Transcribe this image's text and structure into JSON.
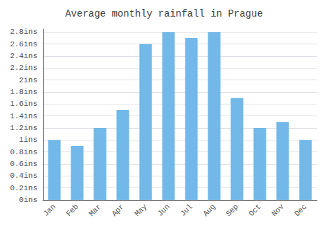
{
  "chart_data": {
    "type": "bar",
    "title": "Average monthly rainfall in Prague",
    "categories": [
      "Jan",
      "Feb",
      "Mar",
      "Apr",
      "May",
      "Jun",
      "Jul",
      "Aug",
      "Sep",
      "Oct",
      "Nov",
      "Dec"
    ],
    "values": [
      1.0,
      0.9,
      1.2,
      1.5,
      2.6,
      2.8,
      2.7,
      2.8,
      1.7,
      1.2,
      1.3,
      1.0
    ],
    "color": "#72b8e8",
    "ylim": [
      0,
      2.85
    ],
    "yticks": [
      {
        "value": 0,
        "label": "0ins"
      },
      {
        "value": 0.2,
        "label": "0.2ins"
      },
      {
        "value": 0.4,
        "label": "0.4ins"
      },
      {
        "value": 0.6,
        "label": "0.6ins"
      },
      {
        "value": 0.8,
        "label": "0.8ins"
      },
      {
        "value": 1.0,
        "label": "1ins"
      },
      {
        "value": 1.2,
        "label": "1.2ins"
      },
      {
        "value": 1.4,
        "label": "1.4ins"
      },
      {
        "value": 1.6,
        "label": "1.6ins"
      },
      {
        "value": 1.8,
        "label": "1.8ins"
      },
      {
        "value": 2.0,
        "label": "2ins"
      },
      {
        "value": 2.2,
        "label": "2.2ins"
      },
      {
        "value": 2.4,
        "label": "2.4ins"
      },
      {
        "value": 2.6,
        "label": "2.6ins"
      },
      {
        "value": 2.8,
        "label": "2.8ins"
      }
    ],
    "grid": true
  }
}
